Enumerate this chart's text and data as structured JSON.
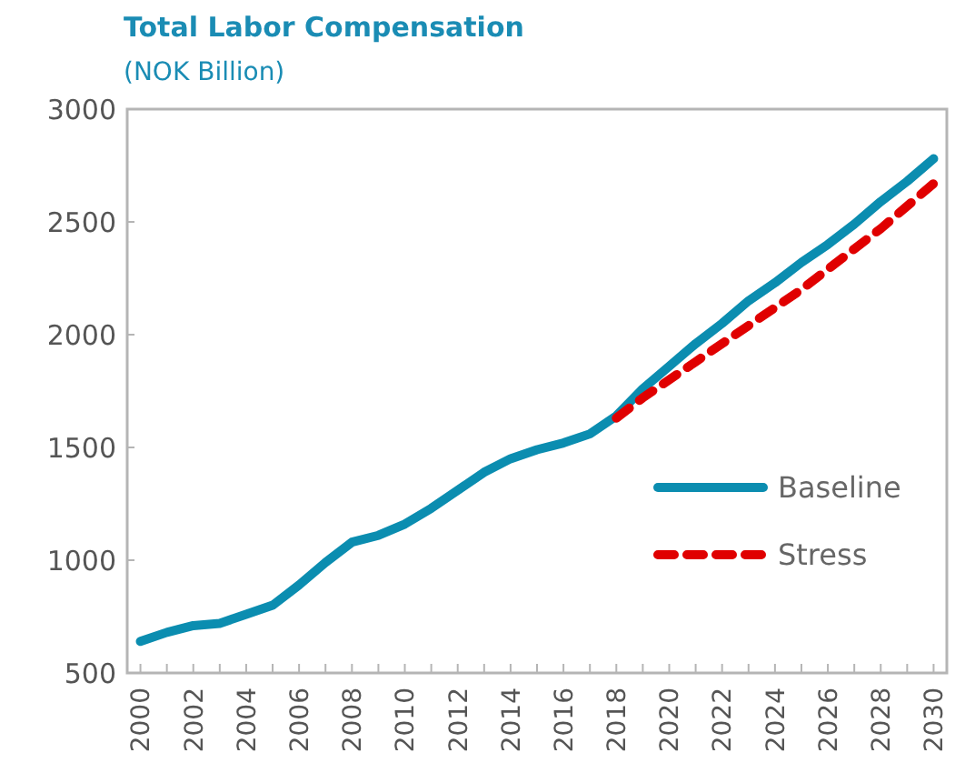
{
  "chart_data": {
    "type": "line",
    "title": "Total Labor Compensation",
    "subtitle": "(NOK Billion)",
    "x": [
      2000,
      2001,
      2002,
      2003,
      2004,
      2005,
      2006,
      2007,
      2008,
      2009,
      2010,
      2011,
      2012,
      2013,
      2014,
      2015,
      2016,
      2017,
      2018,
      2019,
      2020,
      2021,
      2022,
      2023,
      2024,
      2025,
      2026,
      2027,
      2028,
      2029,
      2030
    ],
    "series": [
      {
        "name": "Baseline",
        "color": "#0b8db0",
        "line_style": "solid",
        "values": [
          640,
          680,
          710,
          720,
          760,
          800,
          890,
          990,
          1080,
          1110,
          1160,
          1230,
          1310,
          1390,
          1450,
          1490,
          1520,
          1560,
          1640,
          1760,
          1860,
          1960,
          2050,
          2150,
          2230,
          2320,
          2400,
          2490,
          2590,
          2680,
          2780
        ]
      },
      {
        "name": "Stress",
        "color": "#e00000",
        "line_style": "dashed",
        "values": [
          null,
          null,
          null,
          null,
          null,
          null,
          null,
          null,
          null,
          null,
          null,
          null,
          null,
          null,
          null,
          null,
          null,
          null,
          1630,
          1720,
          1800,
          1880,
          1960,
          2040,
          2120,
          2200,
          2290,
          2380,
          2470,
          2570,
          2670
        ]
      }
    ],
    "xlim": [
      1999.5,
      2030.5
    ],
    "xticks": [
      2000,
      {
        "value": 2001,
        "label": null
      },
      2002,
      {
        "value": 2003,
        "label": null
      },
      2004,
      {
        "value": 2005,
        "label": null
      },
      2006,
      {
        "value": 2007,
        "label": null
      },
      2008,
      {
        "value": 2009,
        "label": null
      },
      2010,
      {
        "value": 2011,
        "label": null
      },
      2012,
      {
        "value": 2013,
        "label": null
      },
      2014,
      {
        "value": 2015,
        "label": null
      },
      2016,
      {
        "value": 2017,
        "label": null
      },
      2018,
      {
        "value": 2019,
        "label": null
      },
      2020,
      {
        "value": 2021,
        "label": null
      },
      2022,
      {
        "value": 2023,
        "label": null
      },
      2024,
      {
        "value": 2025,
        "label": null
      },
      2026,
      {
        "value": 2027,
        "label": null
      },
      2028,
      {
        "value": 2029,
        "label": null
      },
      2030
    ],
    "ylim": [
      500,
      3000
    ],
    "yticks": [
      500,
      1000,
      1500,
      2000,
      2500,
      3000
    ],
    "grid": false,
    "legend": "right",
    "marker": "none"
  }
}
